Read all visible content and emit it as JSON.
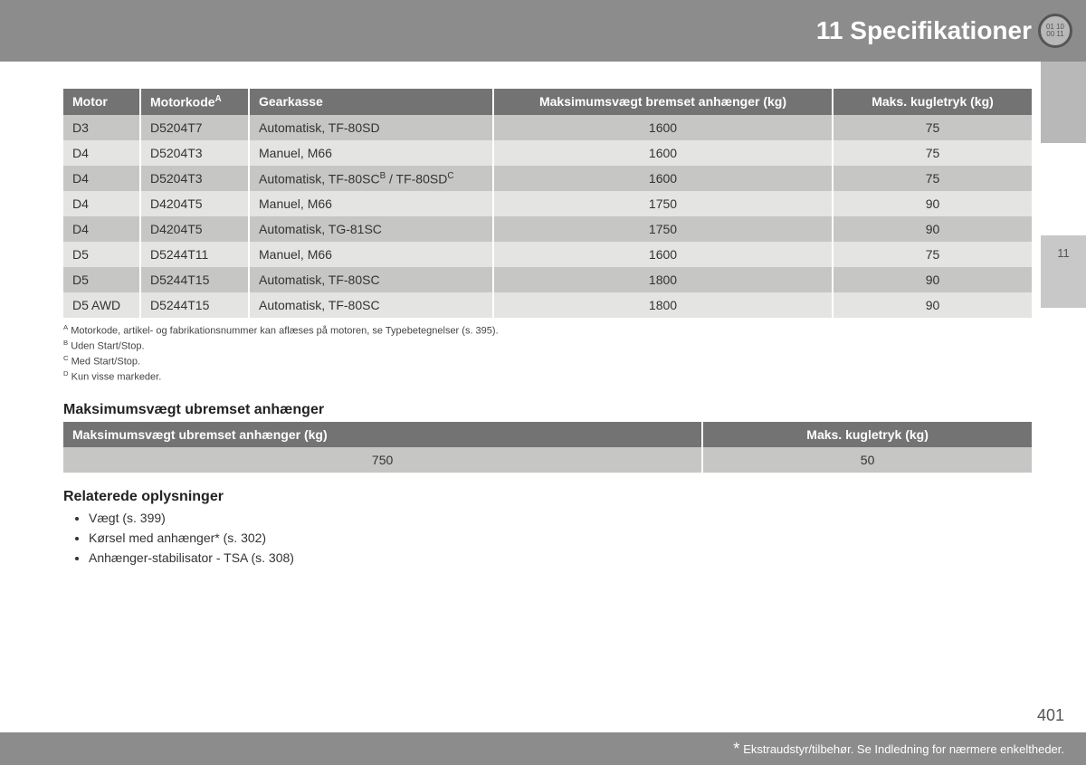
{
  "header": {
    "title": "11 Specifikationer",
    "icon_text": "01 10\n00 11"
  },
  "side_tab": "11",
  "main_table": {
    "headers": {
      "motor": "Motor",
      "motorkode": "Motorkode",
      "motorkode_sup": "A",
      "gearkasse": "Gearkasse",
      "maks_vaegt": "Maksimumsvægt bremset anhænger (kg)",
      "maks_kugletryk": "Maks. kugletryk (kg)"
    },
    "rows": [
      {
        "motor": "D3",
        "kode": "D5204T7",
        "gear": "Automatisk, TF-80SD",
        "gear_sup": "",
        "vaegt": "1600",
        "kugle": "75",
        "shade": "dark"
      },
      {
        "motor": "D4",
        "kode": "D5204T3",
        "gear": "Manuel, M66",
        "gear_sup": "",
        "vaegt": "1600",
        "kugle": "75",
        "shade": "light"
      },
      {
        "motor": "D4",
        "kode": "D5204T3",
        "gear": "Automatisk, TF-80SC",
        "gear_sup": "B",
        "gear_extra": " / TF-80SD",
        "gear_sup2": "C",
        "vaegt": "1600",
        "kugle": "75",
        "shade": "dark"
      },
      {
        "motor": "D4",
        "kode": "D4204T5",
        "gear": "Manuel, M66",
        "gear_sup": "",
        "vaegt": "1750",
        "kugle": "90",
        "shade": "light"
      },
      {
        "motor": "D4",
        "kode": "D4204T5",
        "gear": "Automatisk, TG-81SC",
        "gear_sup": "",
        "vaegt": "1750",
        "kugle": "90",
        "shade": "dark"
      },
      {
        "motor": "D5",
        "kode": "D5244T11",
        "gear": "Manuel, M66",
        "gear_sup": "",
        "vaegt": "1600",
        "kugle": "75",
        "shade": "light"
      },
      {
        "motor": "D5",
        "kode": "D5244T15",
        "gear": "Automatisk, TF-80SC",
        "gear_sup": "",
        "vaegt": "1800",
        "kugle": "90",
        "shade": "dark"
      },
      {
        "motor": "D5 AWD",
        "kode": "D5244T15",
        "gear": "Automatisk, TF-80SC",
        "gear_sup": "",
        "vaegt": "1800",
        "kugle": "90",
        "shade": "light"
      }
    ]
  },
  "footnotes": {
    "a": "Motorkode, artikel- og fabrikationsnummer kan aflæses på motoren, se Typebetegnelser (s. 395).",
    "b": "Uden Start/Stop.",
    "c": "Med Start/Stop.",
    "d": "Kun visse markeder."
  },
  "section2_heading": "Maksimumsvægt ubremset anhænger",
  "second_table": {
    "headers": {
      "vaegt": "Maksimumsvægt ubremset anhænger (kg)",
      "kugle": "Maks. kugletryk (kg)"
    },
    "row": {
      "vaegt": "750",
      "kugle": "50"
    }
  },
  "related_heading": "Relaterede oplysninger",
  "related_items": [
    "Vægt (s. 399)",
    "Kørsel med anhænger* (s. 302)",
    "Anhænger-stabilisator - TSA (s. 308)"
  ],
  "footer": {
    "star": "*",
    "text": "Ekstraudstyr/tilbehør. Se Indledning for nærmere enkeltheder."
  },
  "page_number": "401"
}
